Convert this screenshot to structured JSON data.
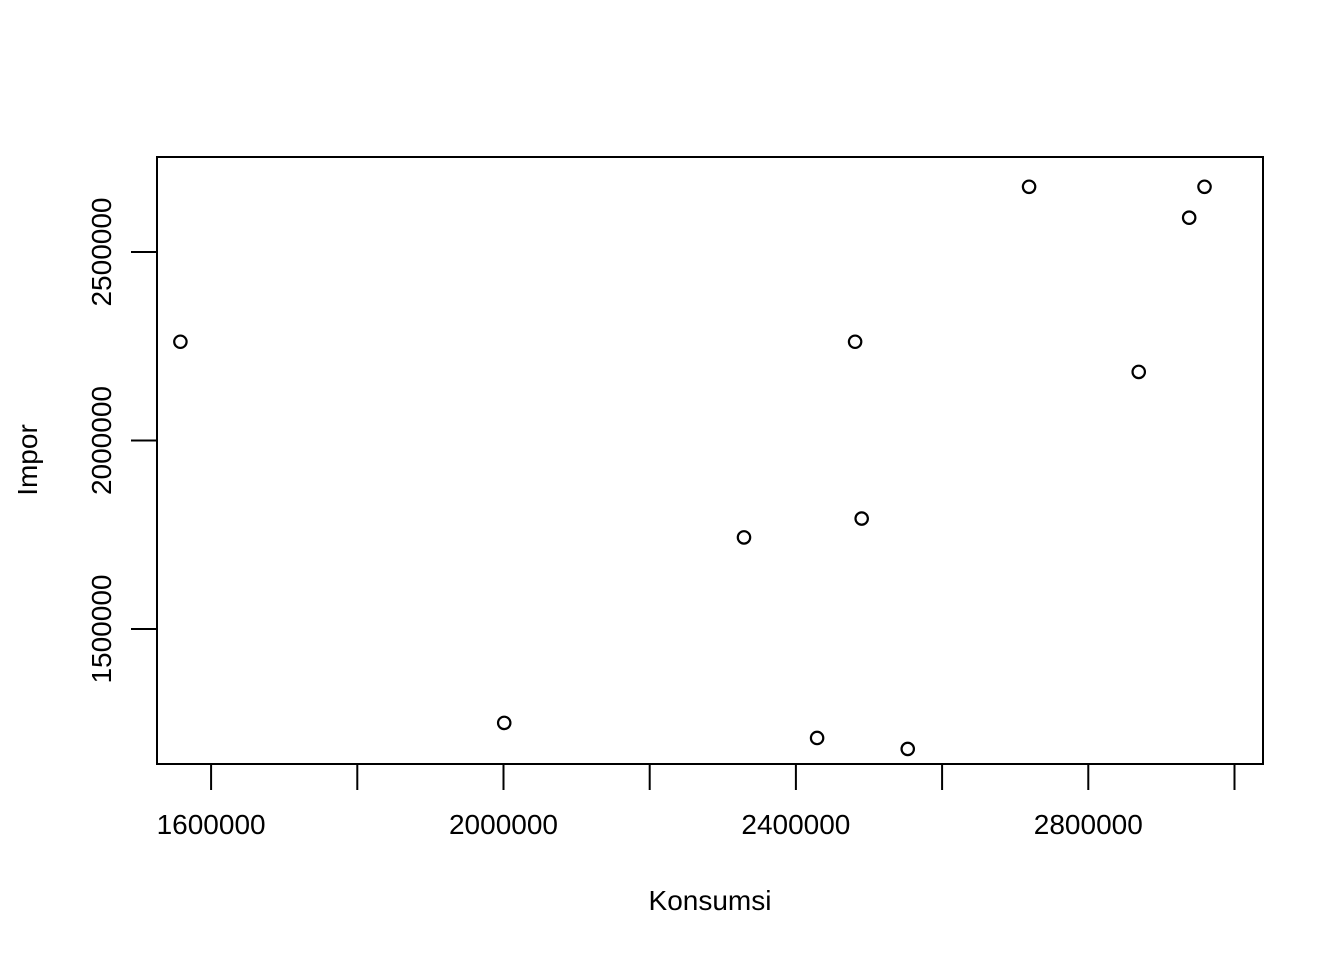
{
  "chart_data": {
    "type": "scatter",
    "title": "",
    "xlabel": "Konsumsi",
    "ylabel": "Impor",
    "xlim": [
      1526000,
      3039000
    ],
    "ylim": [
      1142000,
      2752000
    ],
    "x_ticks": [
      1600000,
      1800000,
      2000000,
      2200000,
      2400000,
      2600000,
      2800000,
      3000000
    ],
    "x_tick_labels": [
      "1600000",
      "",
      "2000000",
      "",
      "2400000",
      "",
      "2800000",
      ""
    ],
    "y_ticks": [
      1500000,
      2000000,
      2500000
    ],
    "y_tick_labels": [
      "1500000",
      "2000000",
      "2500000"
    ],
    "grid": false,
    "legend": "none",
    "points": [
      {
        "x": 1558000,
        "y": 2262000
      },
      {
        "x": 2001000,
        "y": 1251000
      },
      {
        "x": 2329000,
        "y": 1743000
      },
      {
        "x": 2429000,
        "y": 1211000
      },
      {
        "x": 2481000,
        "y": 2262000
      },
      {
        "x": 2490000,
        "y": 1793000
      },
      {
        "x": 2553000,
        "y": 1182000
      },
      {
        "x": 2719000,
        "y": 2673000
      },
      {
        "x": 2869000,
        "y": 2182000
      },
      {
        "x": 2938000,
        "y": 2591000
      },
      {
        "x": 2959000,
        "y": 2673000
      }
    ],
    "colors": {
      "foreground": "#000000",
      "background": "#ffffff"
    }
  }
}
